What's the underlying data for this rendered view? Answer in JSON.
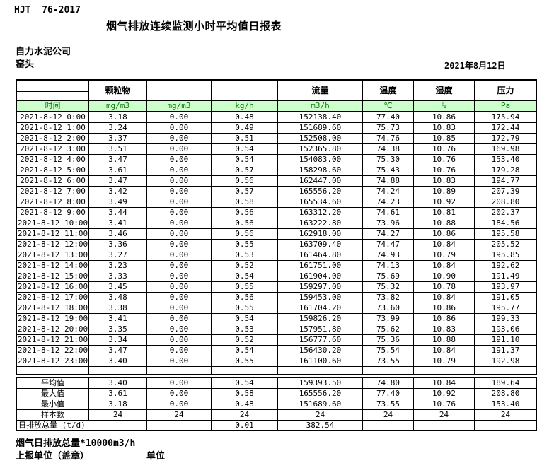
{
  "doc": {
    "standard": "HJT  76-2017",
    "title": "烟气排放连续监测小时平均值日报表",
    "company": "自力水泥公司",
    "location": "窑头",
    "date": "2021年8月12日"
  },
  "colors": {
    "header_bg": "#ccffcc",
    "header_text": "#0f7a0f"
  },
  "table": {
    "group_headers": [
      "",
      "颗粒物",
      "",
      "",
      "流量",
      "温度",
      "湿度",
      "压力"
    ],
    "unit_row": [
      "时间",
      "mg/m3",
      "mg/m3",
      "kg/h",
      "m3/h",
      "℃",
      "%",
      "Pa"
    ],
    "rows": [
      [
        "2021-8-12 0:00",
        "3.18",
        "0.00",
        "0.48",
        "152138.40",
        "77.40",
        "10.86",
        "175.94"
      ],
      [
        "2021-8-12 1:00",
        "3.24",
        "0.00",
        "0.49",
        "151689.60",
        "75.73",
        "10.83",
        "172.44"
      ],
      [
        "2021-8-12 2:00",
        "3.37",
        "0.00",
        "0.51",
        "152508.00",
        "74.76",
        "10.85",
        "172.79"
      ],
      [
        "2021-8-12 3:00",
        "3.51",
        "0.00",
        "0.54",
        "152365.80",
        "74.38",
        "10.76",
        "169.98"
      ],
      [
        "2021-8-12 4:00",
        "3.47",
        "0.00",
        "0.54",
        "154083.00",
        "75.30",
        "10.76",
        "153.40"
      ],
      [
        "2021-8-12 5:00",
        "3.61",
        "0.00",
        "0.57",
        "158298.60",
        "75.43",
        "10.76",
        "179.28"
      ],
      [
        "2021-8-12 6:00",
        "3.47",
        "0.00",
        "0.56",
        "162447.00",
        "74.88",
        "10.83",
        "194.77"
      ],
      [
        "2021-8-12 7:00",
        "3.42",
        "0.00",
        "0.57",
        "165556.20",
        "74.24",
        "10.89",
        "207.39"
      ],
      [
        "2021-8-12 8:00",
        "3.49",
        "0.00",
        "0.58",
        "165534.60",
        "74.23",
        "10.92",
        "208.80"
      ],
      [
        "2021-8-12 9:00",
        "3.44",
        "0.00",
        "0.56",
        "163312.20",
        "74.61",
        "10.81",
        "202.37"
      ],
      [
        "2021-8-12 10:00",
        "3.41",
        "0.00",
        "0.56",
        "163222.80",
        "73.96",
        "10.88",
        "184.56"
      ],
      [
        "2021-8-12 11:00",
        "3.46",
        "0.00",
        "0.56",
        "162918.00",
        "74.27",
        "10.86",
        "195.58"
      ],
      [
        "2021-8-12 12:00",
        "3.36",
        "0.00",
        "0.55",
        "163709.40",
        "74.47",
        "10.84",
        "205.52"
      ],
      [
        "2021-8-12 13:00",
        "3.27",
        "0.00",
        "0.53",
        "161464.80",
        "74.93",
        "10.79",
        "195.85"
      ],
      [
        "2021-8-12 14:00",
        "3.23",
        "0.00",
        "0.52",
        "161751.00",
        "74.13",
        "10.84",
        "192.62"
      ],
      [
        "2021-8-12 15:00",
        "3.33",
        "0.00",
        "0.54",
        "161904.00",
        "75.69",
        "10.90",
        "191.49"
      ],
      [
        "2021-8-12 16:00",
        "3.45",
        "0.00",
        "0.55",
        "159297.00",
        "75.32",
        "10.78",
        "193.97"
      ],
      [
        "2021-8-12 17:00",
        "3.48",
        "0.00",
        "0.56",
        "159453.00",
        "73.82",
        "10.84",
        "191.05"
      ],
      [
        "2021-8-12 18:00",
        "3.38",
        "0.00",
        "0.55",
        "161704.20",
        "73.60",
        "10.86",
        "195.77"
      ],
      [
        "2021-8-12 19:00",
        "3.41",
        "0.00",
        "0.54",
        "159826.20",
        "73.99",
        "10.86",
        "199.33"
      ],
      [
        "2021-8-12 20:00",
        "3.35",
        "0.00",
        "0.53",
        "157951.80",
        "75.62",
        "10.83",
        "193.06"
      ],
      [
        "2021-8-12 21:00",
        "3.34",
        "0.00",
        "0.52",
        "156777.60",
        "75.36",
        "10.88",
        "191.10"
      ],
      [
        "2021-8-12 22:00",
        "3.47",
        "0.00",
        "0.54",
        "156430.20",
        "75.54",
        "10.84",
        "191.37"
      ],
      [
        "2021-8-12 23:00",
        "3.40",
        "0.00",
        "0.55",
        "161100.60",
        "73.55",
        "10.79",
        "192.98"
      ]
    ],
    "summary": [
      [
        "平均值",
        "3.40",
        "0.00",
        "0.54",
        "159393.50",
        "74.80",
        "10.84",
        "189.64"
      ],
      [
        "最大值",
        "3.61",
        "0.00",
        "0.58",
        "165556.20",
        "77.40",
        "10.92",
        "208.80"
      ],
      [
        "最小值",
        "3.18",
        "0.00",
        "0.48",
        "151689.60",
        "73.55",
        "10.76",
        "153.40"
      ],
      [
        "样本数",
        "24",
        "24",
        "24",
        "24",
        "24",
        "24",
        "24"
      ]
    ],
    "daily_total": {
      "label": "日排放总量 (t/d)",
      "pm_total": "0.01",
      "flow_total": "382.54"
    }
  },
  "footer": {
    "note": "烟气日排放总量*10000m3/h",
    "report_unit": "上报单位（盖章）",
    "unit": "单位"
  }
}
